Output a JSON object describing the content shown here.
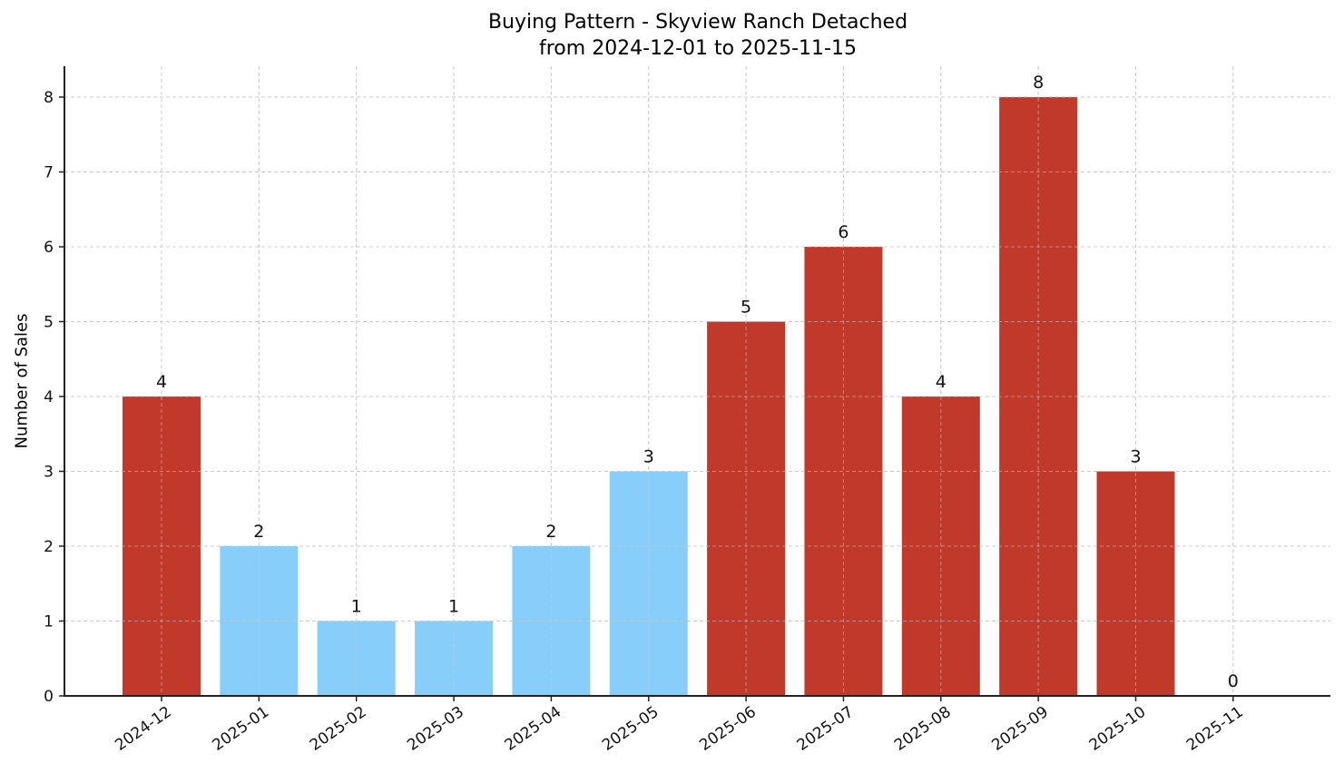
{
  "chart_data": {
    "type": "bar",
    "title": "Buying Pattern - Skyview Ranch Detached",
    "subtitle": "from 2024-12-01 to 2025-11-15",
    "xlabel": "",
    "ylabel": "Number of Sales",
    "categories": [
      "2024-12",
      "2025-01",
      "2025-02",
      "2025-03",
      "2025-04",
      "2025-05",
      "2025-06",
      "2025-07",
      "2025-08",
      "2025-09",
      "2025-10",
      "2025-11"
    ],
    "values": [
      4,
      2,
      1,
      1,
      2,
      3,
      5,
      6,
      4,
      8,
      3,
      0
    ],
    "bar_colors": [
      "#C0392B",
      "#87CEFA",
      "#87CEFA",
      "#87CEFA",
      "#87CEFA",
      "#87CEFA",
      "#C0392B",
      "#C0392B",
      "#C0392B",
      "#C0392B",
      "#C0392B",
      "#C0392B"
    ],
    "data_labels": [
      "4",
      "2",
      "1",
      "1",
      "2",
      "3",
      "5",
      "6",
      "4",
      "8",
      "3",
      "0"
    ],
    "yticks": [
      0,
      1,
      2,
      3,
      4,
      5,
      6,
      7,
      8
    ],
    "ylim": [
      0,
      8.4
    ],
    "grid": true,
    "legend": null,
    "colors": {
      "high": "#C0392B",
      "low": "#87CEFA"
    }
  }
}
